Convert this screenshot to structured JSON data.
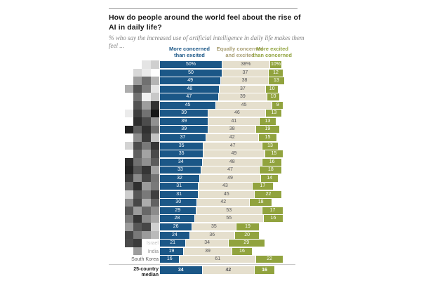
{
  "header": {
    "title_line1": "How do people around the world feel about the rise of",
    "title_line2": "AI in daily life?",
    "subtitle_line1": "% who say the increased use of artificial intelligence in daily life makes them",
    "subtitle_line2": "feel ..."
  },
  "legend": {
    "concerned_line1": "More concerned",
    "concerned_line2": "than excited",
    "equal_line1": "Equally concerned",
    "equal_line2": "and excited",
    "excited_line1": "More excited",
    "excited_line2": "than concerned"
  },
  "colors": {
    "series": [
      "#1b5787",
      "#e5dfcd",
      "#91a33e"
    ],
    "series_text": [
      "#ffffff",
      "#56565a",
      "#ffffff"
    ],
    "legend_text": [
      "#1b5787",
      "#a89e72",
      "#91a33e"
    ],
    "title_text": "#1a1a1a",
    "subtitle_text": "#828282"
  },
  "chart_data": {
    "type": "bar",
    "stacked": true,
    "orientation": "horizontal",
    "unit": "%",
    "xlim": [
      0,
      100
    ],
    "legend_position": "top",
    "series_names": [
      "More concerned than excited",
      "Equally concerned and excited",
      "More excited than concerned"
    ],
    "rows": [
      {
        "country": "",
        "label_color": "",
        "values": [
          50,
          38,
          10
        ],
        "labels": [
          "50%",
          "38%",
          "10%"
        ],
        "mosaic": [
          "",
          "",
          "#e4e4e4",
          "#cfcfcf"
        ]
      },
      {
        "country": "",
        "label_color": "",
        "values": [
          50,
          37,
          12
        ],
        "labels": [
          "50",
          "37",
          "12"
        ],
        "mosaic": [
          "",
          "#d8d8d8",
          "#ebebeb",
          ""
        ]
      },
      {
        "country": "",
        "label_color": "",
        "values": [
          49,
          38,
          13
        ],
        "labels": [
          "49",
          "38",
          "13"
        ],
        "mosaic": [
          "",
          "#9d9d9d",
          "#707070",
          "#b4b4b4"
        ]
      },
      {
        "country": "",
        "label_color": "",
        "values": [
          48,
          37,
          10
        ],
        "labels": [
          "48",
          "37",
          "10"
        ],
        "mosaic": [
          "#adadad",
          "#525252",
          "#7e7e7e",
          "#e4e4e4"
        ]
      },
      {
        "country": "",
        "label_color": "",
        "values": [
          47,
          39,
          10
        ],
        "labels": [
          "47",
          "39",
          "10"
        ],
        "mosaic": [
          "",
          "#717171",
          "#f1f1f1",
          "#c8c8c8"
        ]
      },
      {
        "country": "",
        "label_color": "",
        "values": [
          45,
          45,
          9
        ],
        "labels": [
          "45",
          "45",
          "9"
        ],
        "mosaic": [
          "",
          "#525252",
          "#9d9d9d",
          "#313131"
        ]
      },
      {
        "country": "",
        "label_color": "",
        "values": [
          39,
          46,
          13
        ],
        "labels": [
          "39",
          "46",
          "13"
        ],
        "mosaic": [
          "#ebebeb",
          "#3e3e3e",
          "#727272",
          "#161616"
        ]
      },
      {
        "country": "",
        "label_color": "",
        "values": [
          39,
          41,
          13
        ],
        "labels": [
          "39",
          "41",
          "13"
        ],
        "mosaic": [
          "",
          "#2d2d2d",
          "#4c4c4c",
          "#919191"
        ]
      },
      {
        "country": "",
        "label_color": "",
        "values": [
          39,
          38,
          19
        ],
        "labels": [
          "39",
          "38",
          "19"
        ],
        "mosaic": [
          "#212121",
          "#5e5e5e",
          "#313131",
          "#6d6d6d"
        ]
      },
      {
        "country": "",
        "label_color": "",
        "values": [
          37,
          42,
          15
        ],
        "labels": [
          "37",
          "42",
          "15"
        ],
        "mosaic": [
          "",
          "#8c8c8c",
          "#3c3c3c",
          "#c3c3c3"
        ]
      },
      {
        "country": "",
        "label_color": "",
        "values": [
          35,
          47,
          13
        ],
        "labels": [
          "35",
          "47",
          "13"
        ],
        "mosaic": [
          "#d3d3d3",
          "#4c4c4c",
          "#797979",
          "#353535"
        ]
      },
      {
        "country": "",
        "label_color": "",
        "values": [
          35,
          49,
          15
        ],
        "labels": [
          "35",
          "49",
          "15"
        ],
        "mosaic": [
          "",
          "#606060",
          "#a3a3a3",
          "#4a4a4a"
        ]
      },
      {
        "country": "",
        "label_color": "",
        "values": [
          34,
          48,
          16
        ],
        "labels": [
          "34",
          "48",
          "16"
        ],
        "mosaic": [
          "#2c2c2c",
          "#707070",
          "#909090",
          "#5c5c5c"
        ]
      },
      {
        "country": "",
        "label_color": "",
        "values": [
          33,
          47,
          18
        ],
        "labels": [
          "33",
          "47",
          "18"
        ],
        "mosaic": [
          "#242424",
          "#575757",
          "#353535",
          "#a1a1a1"
        ]
      },
      {
        "country": "",
        "label_color": "",
        "values": [
          32,
          49,
          14
        ],
        "labels": [
          "32",
          "49",
          "14"
        ],
        "mosaic": [
          "#3c3c3c",
          "#8a8a8a",
          "#464646",
          "#747474"
        ]
      },
      {
        "country": "",
        "label_color": "",
        "values": [
          31,
          43,
          17
        ],
        "labels": [
          "31",
          "43",
          "17"
        ],
        "mosaic": [
          "#686868",
          "#2f2f2f",
          "#9b9b9b",
          "#797979"
        ]
      },
      {
        "country": "",
        "label_color": "",
        "values": [
          31,
          45,
          22
        ],
        "labels": [
          "31",
          "45",
          "22"
        ],
        "mosaic": [
          "#cecece",
          "#575757",
          "#797979",
          "#3f3f3f"
        ]
      },
      {
        "country": "",
        "label_color": "",
        "values": [
          30,
          42,
          18
        ],
        "labels": [
          "30",
          "42",
          "18"
        ],
        "mosaic": [
          "#8a8a8a",
          "#464646",
          "#acacac",
          "#626262"
        ]
      },
      {
        "country": "",
        "label_color": "",
        "values": [
          29,
          53,
          17
        ],
        "labels": [
          "29",
          "53",
          "17"
        ],
        "mosaic": [
          "#575757",
          "#9b9b9b",
          "#686868",
          "#8c8c8c"
        ]
      },
      {
        "country": "",
        "label_color": "",
        "values": [
          28,
          55,
          16
        ],
        "labels": [
          "28",
          "55",
          "16"
        ],
        "mosaic": [
          "#797979",
          "#353535",
          "#8a8a8a",
          "#a6a6a6"
        ]
      },
      {
        "country": "",
        "label_color": "",
        "values": [
          26,
          35,
          19
        ],
        "labels": [
          "26",
          "35",
          "19"
        ],
        "mosaic": [
          "#9b9b9b",
          "#575757",
          "#464646",
          "#d0d0d0"
        ]
      },
      {
        "country": "",
        "label_color": "",
        "values": [
          24,
          36,
          20
        ],
        "labels": [
          "24",
          "36",
          "20"
        ],
        "mosaic": [
          "#464646",
          "#797979",
          "#9b9b9b",
          "#bababa"
        ]
      },
      {
        "country": "Israel",
        "label_color": "#c6c6c6",
        "values": [
          21,
          34,
          29
        ],
        "labels": [
          "21",
          "34",
          "29"
        ],
        "mosaic": [
          "#4b4b4b",
          "#3b3b3b",
          "",
          ""
        ]
      },
      {
        "country": "India",
        "label_color": "#8f8f8f",
        "values": [
          19,
          39,
          16
        ],
        "labels": [
          "19",
          "39",
          "16"
        ],
        "mosaic": [
          "",
          "#9d9d9d",
          "",
          ""
        ]
      },
      {
        "country": "South Korea",
        "label_color": "#5d5d5d",
        "values": [
          16,
          61,
          22
        ],
        "labels": [
          "16",
          "61",
          "22"
        ],
        "mosaic": [
          "",
          "",
          "",
          ""
        ]
      }
    ],
    "median": {
      "label_line1": "25-country",
      "label_line2": "median",
      "values": [
        34,
        42,
        16
      ],
      "labels": [
        "34",
        "42",
        "16"
      ]
    }
  }
}
